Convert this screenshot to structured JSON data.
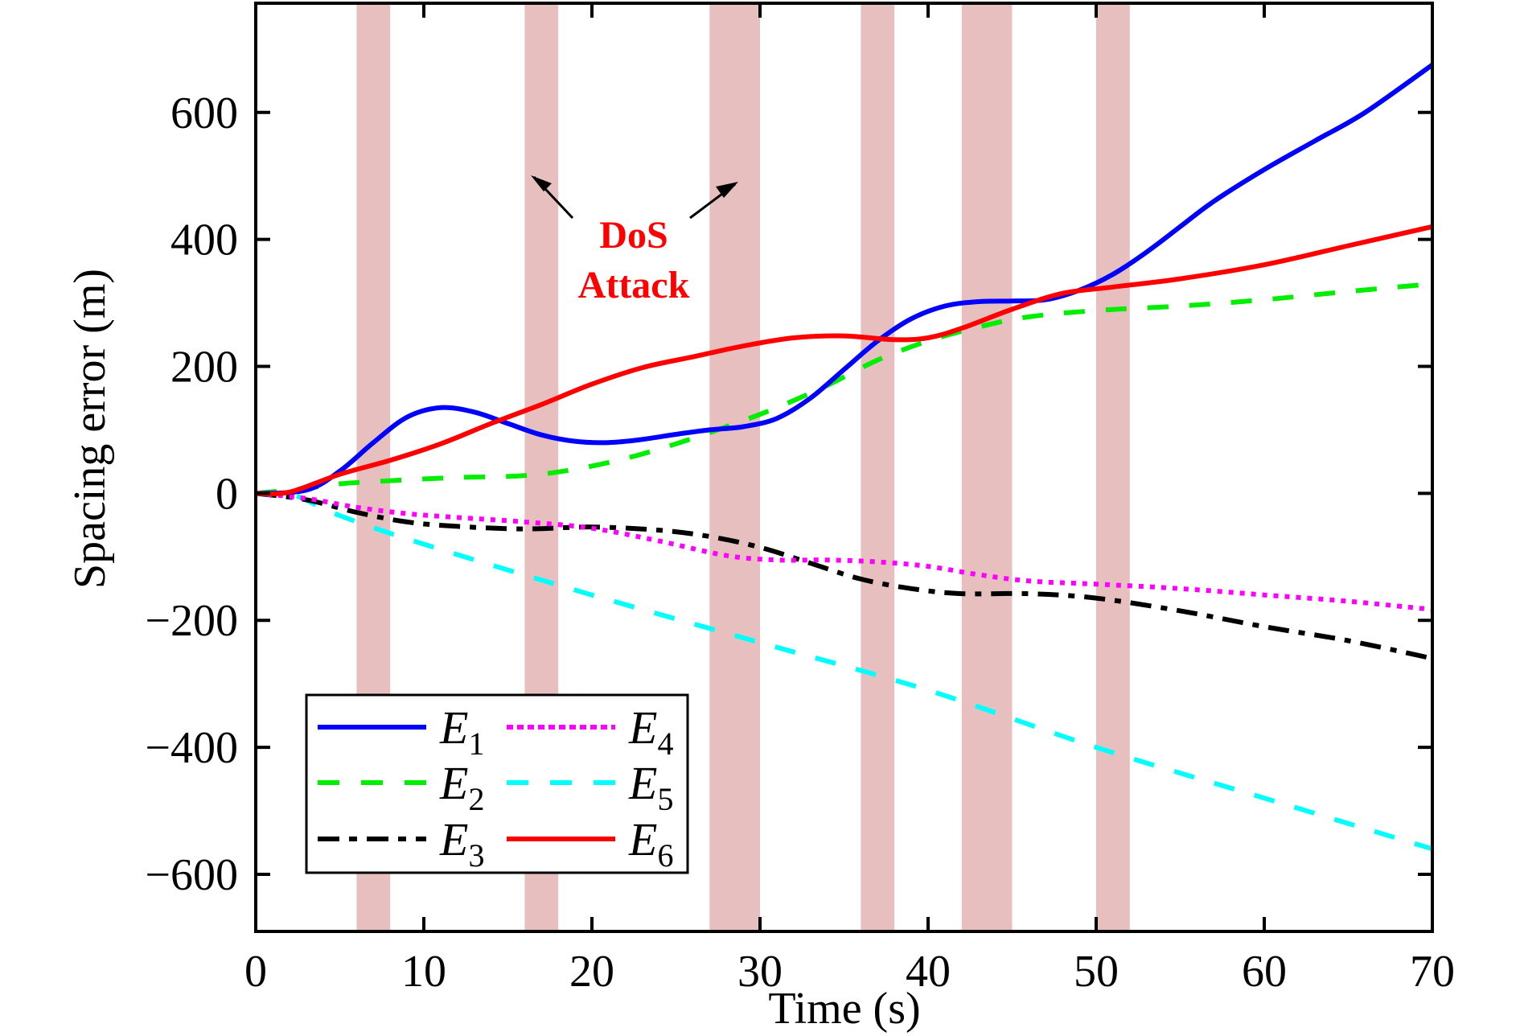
{
  "chart_data": {
    "type": "line",
    "title": "",
    "xlabel": "Time (s)",
    "ylabel": "Spacing error (m)",
    "xlim": [
      0,
      70
    ],
    "ylim": [
      -690,
      772
    ],
    "xticks": [
      0,
      10,
      20,
      30,
      40,
      50,
      60,
      70
    ],
    "xtick_labels": [
      "0",
      "10",
      "20",
      "30",
      "40",
      "50",
      "60",
      "70"
    ],
    "yticks": [
      -600,
      -400,
      -200,
      0,
      200,
      400,
      600
    ],
    "ytick_labels": [
      "−600",
      "−400",
      "−200",
      "0",
      "200",
      "400",
      "600"
    ],
    "grid": false,
    "legend_position": "bottom-left",
    "attack_intervals": [
      [
        6,
        8
      ],
      [
        16,
        18
      ],
      [
        27,
        30
      ],
      [
        36,
        38
      ],
      [
        42,
        45
      ],
      [
        50,
        52
      ]
    ],
    "attack_color": "#e8bfbf",
    "annotation": {
      "line1": "DoS",
      "line2": "Attack",
      "color": "#ff0000"
    },
    "series": [
      {
        "name": "E1",
        "base": "E",
        "sub": "1",
        "color": "#0000ff",
        "dash": "solid",
        "x": [
          0,
          3,
          5,
          7,
          9,
          11,
          13,
          15,
          17,
          19,
          21,
          23,
          25,
          27,
          29,
          31,
          33,
          35,
          37,
          39,
          41,
          43,
          45,
          47,
          49,
          51,
          53,
          55,
          57,
          60,
          63,
          66,
          70
        ],
        "y": [
          0,
          5,
          35,
          80,
          120,
          135,
          128,
          110,
          92,
          82,
          80,
          85,
          93,
          100,
          105,
          118,
          150,
          195,
          240,
          275,
          295,
          302,
          303,
          305,
          320,
          345,
          380,
          420,
          460,
          510,
          555,
          600,
          675
        ]
      },
      {
        "name": "E2",
        "base": "E",
        "sub": "2",
        "color": "#00ee00",
        "dash": "dashed",
        "x": [
          0,
          3,
          5,
          8,
          12,
          16,
          19,
          22,
          25,
          28,
          31,
          34,
          37,
          40,
          43,
          46,
          50,
          55,
          60,
          65,
          70
        ],
        "y": [
          0,
          8,
          15,
          20,
          25,
          28,
          38,
          55,
          78,
          105,
          135,
          170,
          210,
          240,
          262,
          278,
          288,
          295,
          305,
          318,
          330
        ]
      },
      {
        "name": "E3",
        "base": "E",
        "sub": "3",
        "color": "#000000",
        "dash": "dashdot",
        "x": [
          0,
          3,
          6,
          9,
          12,
          16,
          20,
          24,
          27,
          30,
          33,
          36,
          39,
          42,
          46,
          50,
          55,
          60,
          65,
          70
        ],
        "y": [
          0,
          -10,
          -30,
          -45,
          -52,
          -56,
          -53,
          -58,
          -68,
          -85,
          -110,
          -135,
          -150,
          -158,
          -158,
          -165,
          -185,
          -210,
          -232,
          -260
        ]
      },
      {
        "name": "E4",
        "base": "E",
        "sub": "4",
        "color": "#ff00ff",
        "dash": "dotted",
        "x": [
          0,
          3,
          6,
          9,
          12,
          16,
          20,
          24,
          28,
          31,
          34,
          37,
          40,
          43,
          46,
          50,
          55,
          60,
          65,
          70
        ],
        "y": [
          0,
          -8,
          -22,
          -32,
          -38,
          -45,
          -55,
          -75,
          -98,
          -105,
          -105,
          -108,
          -115,
          -128,
          -138,
          -143,
          -150,
          -160,
          -170,
          -183
        ]
      },
      {
        "name": "E5",
        "base": "E",
        "sub": "5",
        "color": "#00ffff",
        "dash": "dashed",
        "x": [
          0,
          2,
          5,
          10,
          20,
          30,
          40,
          50,
          60,
          70
        ],
        "y": [
          0,
          0,
          -35,
          -80,
          -160,
          -235,
          -310,
          -400,
          -480,
          -560
        ]
      },
      {
        "name": "E6",
        "base": "E",
        "sub": "6",
        "color": "#ff0000",
        "dash": "solid",
        "x": [
          0,
          2,
          5,
          8,
          11,
          14,
          17,
          20,
          23,
          26,
          29,
          32,
          35,
          38,
          40,
          42,
          45,
          48,
          51,
          55,
          60,
          65,
          70
        ],
        "y": [
          0,
          2,
          30,
          52,
          78,
          110,
          140,
          172,
          198,
          215,
          232,
          245,
          248,
          242,
          245,
          260,
          290,
          315,
          325,
          338,
          360,
          390,
          420
        ]
      }
    ]
  }
}
